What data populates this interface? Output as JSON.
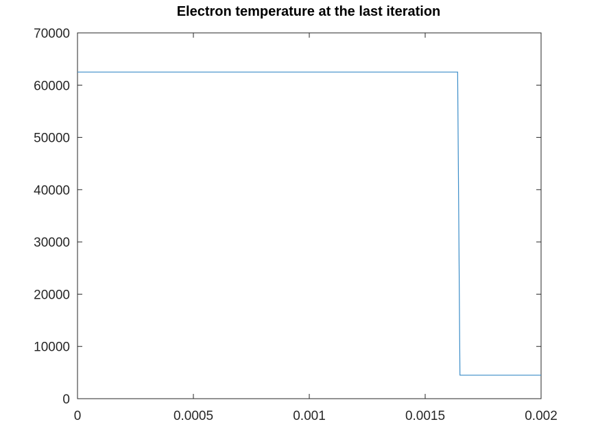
{
  "chart_data": {
    "type": "line",
    "title": "Electron temperature at the last iteration",
    "xlabel": "",
    "ylabel": "",
    "xlim": [
      0,
      0.002
    ],
    "ylim": [
      0,
      70000
    ],
    "x_ticks": [
      0,
      0.0005,
      0.001,
      0.0015,
      0.002
    ],
    "x_tick_labels": [
      "0",
      "0.0005",
      "0.001",
      "0.0015",
      "0.002"
    ],
    "y_ticks": [
      0,
      10000,
      20000,
      30000,
      40000,
      50000,
      60000,
      70000
    ],
    "y_tick_labels": [
      "0",
      "10000",
      "20000",
      "30000",
      "40000",
      "50000",
      "60000",
      "70000"
    ],
    "grid": false,
    "series": [
      {
        "color": "#3a8cc8",
        "x": [
          0,
          0.00164,
          0.00165,
          0.002
        ],
        "y": [
          62500,
          62500,
          4500,
          4500
        ]
      }
    ]
  }
}
